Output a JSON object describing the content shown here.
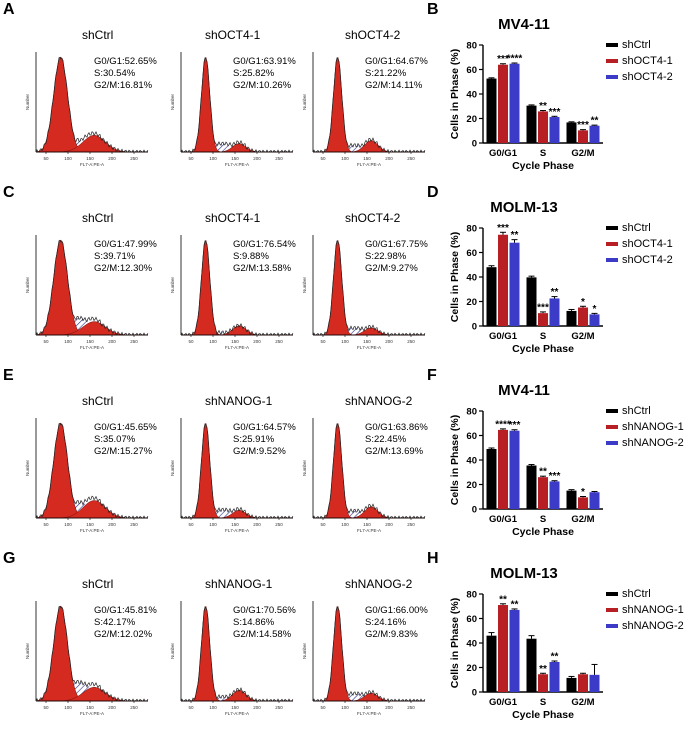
{
  "colors": {
    "ctrl": "#000000",
    "kd1": "#b81f25",
    "kd2": "#3b3bc7",
    "flow_fill": "#d42a20",
    "hatch": "#2c2f8a"
  },
  "flow_axis": {
    "xlabel": "FL7-A:PE-A",
    "ylabel": "Number",
    "ticks": [
      "50",
      "100",
      "150",
      "200",
      "250"
    ]
  },
  "flow_rows": [
    {
      "letter": "A",
      "panels": [
        {
          "title": "shCtrl",
          "g0g1": "G0/G1:52.65%",
          "s": "S:30.54%",
          "g2m": "G2/M:16.81%"
        },
        {
          "title": "shOCT4-1",
          "g0g1": "G0/G1:63.91%",
          "s": "S:25.82%",
          "g2m": "G2/M:10.26%"
        },
        {
          "title": "shOCT4-2",
          "g0g1": "G0/G1:64.67%",
          "s": "S:21.22%",
          "g2m": "G2/M:14.11%"
        }
      ]
    },
    {
      "letter": "C",
      "panels": [
        {
          "title": "shCtrl",
          "g0g1": "G0/G1:47.99%",
          "s": "S:39.71%",
          "g2m": "G2/M:12.30%"
        },
        {
          "title": "shOCT4-1",
          "g0g1": "G0/G1:76.54%",
          "s": "S:9.88%",
          "g2m": "G2/M:13.58%"
        },
        {
          "title": "shOCT4-2",
          "g0g1": "G0/G1:67.75%",
          "s": "S:22.98%",
          "g2m": "G2/M:9.27%"
        }
      ]
    },
    {
      "letter": "E",
      "panels": [
        {
          "title": "shCtrl",
          "g0g1": "G0/G1:45.65%",
          "s": "S:35.07%",
          "g2m": "G2/M:15.27%"
        },
        {
          "title": "shNANOG-1",
          "g0g1": "G0/G1:64.57%",
          "s": "S:25.91%",
          "g2m": "G2/M:9.52%"
        },
        {
          "title": "shNANOG-2",
          "g0g1": "G0/G1:63.86%",
          "s": "S:22.45%",
          "g2m": "G2/M:13.69%"
        }
      ]
    },
    {
      "letter": "G",
      "panels": [
        {
          "title": "shCtrl",
          "g0g1": "G0/G1:45.81%",
          "s": "S:42.17%",
          "g2m": "G2/M:12.02%"
        },
        {
          "title": "shNANOG-1",
          "g0g1": "G0/G1:70.56%",
          "s": "S:14.86%",
          "g2m": "G2/M:14.58%"
        },
        {
          "title": "shNANOG-2",
          "g0g1": "G0/G1:66.00%",
          "s": "S:24.16%",
          "g2m": "G2/M:9.83%"
        }
      ]
    }
  ],
  "chart_data": [
    {
      "letter": "B",
      "type": "bar",
      "title": "MV4-11",
      "xlabel": "Cycle Phase",
      "ylabel": "Cells in Phase (%)",
      "categories": [
        "G0/G1",
        "S",
        "G2/M"
      ],
      "ylim": [
        0,
        80
      ],
      "yticks": [
        "0",
        "20",
        "40",
        "60",
        "80"
      ],
      "series": [
        {
          "name": "shCtrl",
          "values": [
            52.6,
            30.5,
            16.8
          ],
          "errors": [
            0.6,
            0.6,
            0.5
          ],
          "stars": [
            "",
            "",
            ""
          ]
        },
        {
          "name": "shOCT4-1",
          "values": [
            63.9,
            25.8,
            10.3
          ],
          "errors": [
            0.8,
            0.7,
            0.6
          ],
          "stars": [
            "***",
            "**",
            "***"
          ]
        },
        {
          "name": "shOCT4-2",
          "values": [
            64.7,
            21.2,
            14.1
          ],
          "errors": [
            0.6,
            0.6,
            0.5
          ],
          "stars": [
            "****",
            "***",
            "**"
          ]
        }
      ]
    },
    {
      "letter": "D",
      "type": "bar",
      "title": "MOLM-13",
      "xlabel": "Cycle Phase",
      "ylabel": "Cells in Phase (%)",
      "categories": [
        "G0/G1",
        "S",
        "G2/M"
      ],
      "ylim": [
        0,
        80
      ],
      "yticks": [
        "0",
        "20",
        "40",
        "60",
        "80"
      ],
      "series": [
        {
          "name": "shCtrl",
          "values": [
            48.0,
            39.7,
            12.3
          ],
          "errors": [
            1.2,
            1.0,
            1.2
          ],
          "stars": [
            "",
            "",
            ""
          ]
        },
        {
          "name": "shOCT4-1",
          "values": [
            74.5,
            10.5,
            15.1
          ],
          "errors": [
            2.0,
            1.0,
            1.0
          ],
          "stars": [
            "***",
            "***",
            "*"
          ]
        },
        {
          "name": "shOCT4-2",
          "values": [
            68.0,
            22.5,
            9.5
          ],
          "errors": [
            2.5,
            1.5,
            0.8
          ],
          "stars": [
            "**",
            "**",
            "*"
          ]
        }
      ]
    },
    {
      "letter": "F",
      "type": "bar",
      "title": "MV4-11",
      "xlabel": "Cycle Phase",
      "ylabel": "Cells in Phase (%)",
      "categories": [
        "G0/G1",
        "S",
        "G2/M"
      ],
      "ylim": [
        0,
        80
      ],
      "yticks": [
        "0",
        "20",
        "40",
        "60",
        "80"
      ],
      "series": [
        {
          "name": "shCtrl",
          "values": [
            49.0,
            35.5,
            15.0
          ],
          "errors": [
            0.8,
            0.8,
            0.8
          ],
          "stars": [
            "",
            "",
            ""
          ]
        },
        {
          "name": "shNANOG-1",
          "values": [
            64.6,
            26.0,
            9.5
          ],
          "errors": [
            0.8,
            0.8,
            0.7
          ],
          "stars": [
            "****",
            "**",
            "*"
          ]
        },
        {
          "name": "shNANOG-2",
          "values": [
            63.9,
            22.5,
            13.7
          ],
          "errors": [
            0.8,
            0.6,
            0.6
          ],
          "stars": [
            "***",
            "***",
            ""
          ]
        }
      ]
    },
    {
      "letter": "H",
      "type": "bar",
      "title": "MOLM-13",
      "xlabel": "Cycle Phase",
      "ylabel": "Cells in Phase (%)",
      "categories": [
        "G0/G1",
        "S",
        "G2/M"
      ],
      "ylim": [
        0,
        80
      ],
      "yticks": [
        "0",
        "20",
        "40",
        "60",
        "80"
      ],
      "series": [
        {
          "name": "shCtrl",
          "values": [
            46.0,
            43.5,
            11.5
          ],
          "errors": [
            2.5,
            2.5,
            1.2
          ],
          "stars": [
            "",
            "",
            ""
          ]
        },
        {
          "name": "shNANOG-1",
          "values": [
            71.0,
            14.5,
            14.5
          ],
          "errors": [
            1.0,
            0.8,
            0.8
          ],
          "stars": [
            "**",
            "**",
            ""
          ]
        },
        {
          "name": "shNANOG-2",
          "values": [
            67.0,
            24.5,
            14.0
          ],
          "errors": [
            0.8,
            0.8,
            8.5
          ],
          "stars": [
            "**",
            "**",
            ""
          ]
        }
      ]
    }
  ]
}
